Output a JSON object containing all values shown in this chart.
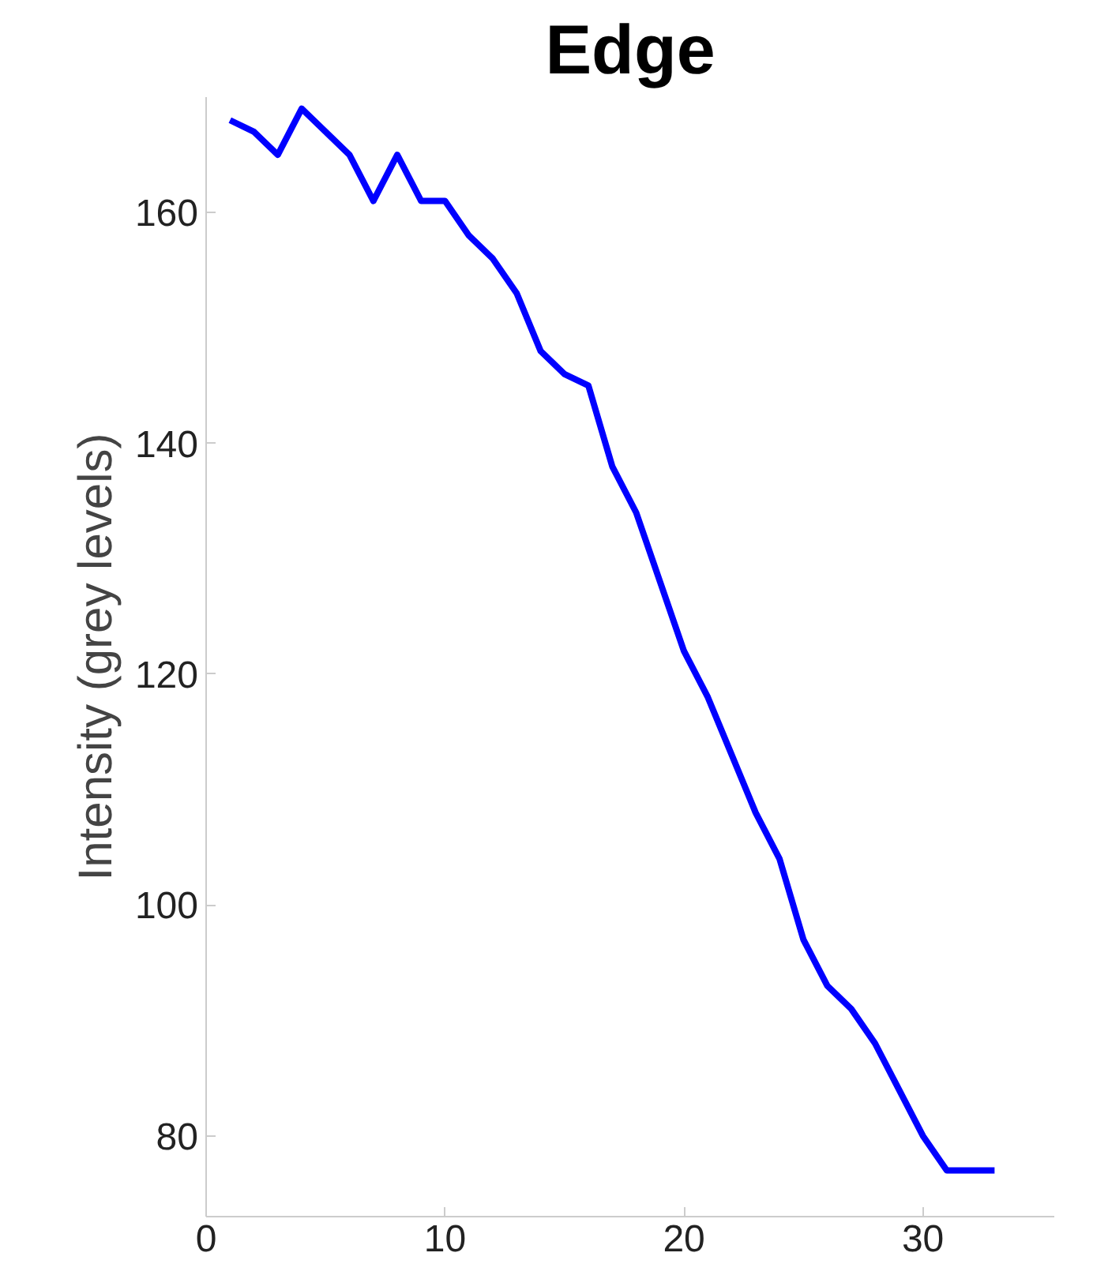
{
  "chart_data": {
    "type": "line",
    "title": "Edge",
    "ylabel": "Intensity (grey levels)",
    "x": [
      1,
      2,
      3,
      4,
      5,
      6,
      7,
      8,
      9,
      10,
      11,
      12,
      13,
      14,
      15,
      16,
      17,
      18,
      19,
      20,
      21,
      22,
      23,
      24,
      25,
      26,
      27,
      28,
      29,
      30,
      31,
      32,
      33
    ],
    "series": [
      {
        "color": "#0000ff",
        "values": [
          168,
          167,
          165,
          169,
          167,
          165,
          161,
          165,
          161,
          161,
          158,
          156,
          153,
          148,
          146,
          145,
          138,
          134,
          128,
          122,
          118,
          113,
          108,
          104,
          97,
          93,
          91,
          88,
          84,
          80,
          77,
          77,
          77
        ]
      }
    ],
    "xlim": [
      0,
      35.5
    ],
    "ylim": [
      73,
      170
    ],
    "xticks": [
      0,
      10,
      20,
      30
    ],
    "yticks": [
      80,
      100,
      120,
      140,
      160
    ],
    "grid": false,
    "marker": "none",
    "line_style": "solid"
  }
}
